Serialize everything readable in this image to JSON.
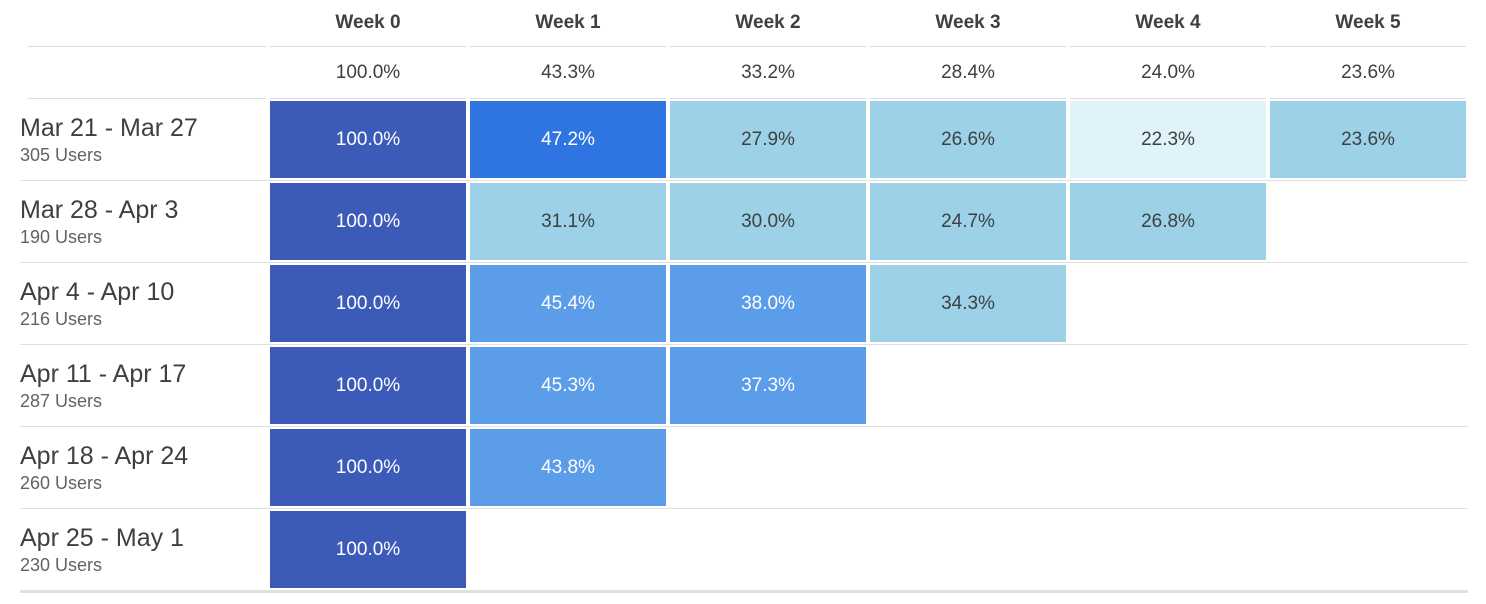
{
  "chart_data": {
    "type": "heatmap",
    "description": "Weekly cohort user retention table",
    "columns": [
      "Week 0",
      "Week 1",
      "Week 2",
      "Week 3",
      "Week 4",
      "Week 5"
    ],
    "summary_values": [
      100.0,
      43.3,
      33.2,
      28.4,
      24.0,
      23.6
    ],
    "value_suffix": "%",
    "users_suffix": " Users",
    "cohorts": [
      {
        "label": "Mar 21 - Mar 27",
        "users": 305,
        "values": [
          100.0,
          47.2,
          27.9,
          26.6,
          22.3,
          23.6
        ],
        "levels": [
          4,
          3,
          1,
          1,
          0,
          1
        ]
      },
      {
        "label": "Mar 28 - Apr 3",
        "users": 190,
        "values": [
          100.0,
          31.1,
          30.0,
          24.7,
          26.8
        ],
        "levels": [
          4,
          1,
          1,
          1,
          1
        ]
      },
      {
        "label": "Apr 4 - Apr 10",
        "users": 216,
        "values": [
          100.0,
          45.4,
          38.0,
          34.3
        ],
        "levels": [
          4,
          2,
          2,
          1
        ]
      },
      {
        "label": "Apr 11 - Apr 17",
        "users": 287,
        "values": [
          100.0,
          45.3,
          37.3
        ],
        "levels": [
          4,
          2,
          2
        ]
      },
      {
        "label": "Apr 18 - Apr 24",
        "users": 260,
        "values": [
          100.0,
          43.8
        ],
        "levels": [
          4,
          2
        ]
      },
      {
        "label": "Apr 25 - May 1",
        "users": 230,
        "values": [
          100.0
        ],
        "levels": [
          4
        ]
      }
    ],
    "palette": [
      "#DFF3F8",
      "#9DD1E7",
      "#5C9DEA",
      "#2E75E1",
      "#3C5BB8"
    ],
    "cell_text_colors": [
      "#3c4043",
      "#3c4043",
      "#ffffff",
      "#ffffff",
      "#ffffff"
    ],
    "header_text_color": "#3c4043",
    "grid_line_color": "#dadce0",
    "legend_position": "none",
    "grid": true
  }
}
